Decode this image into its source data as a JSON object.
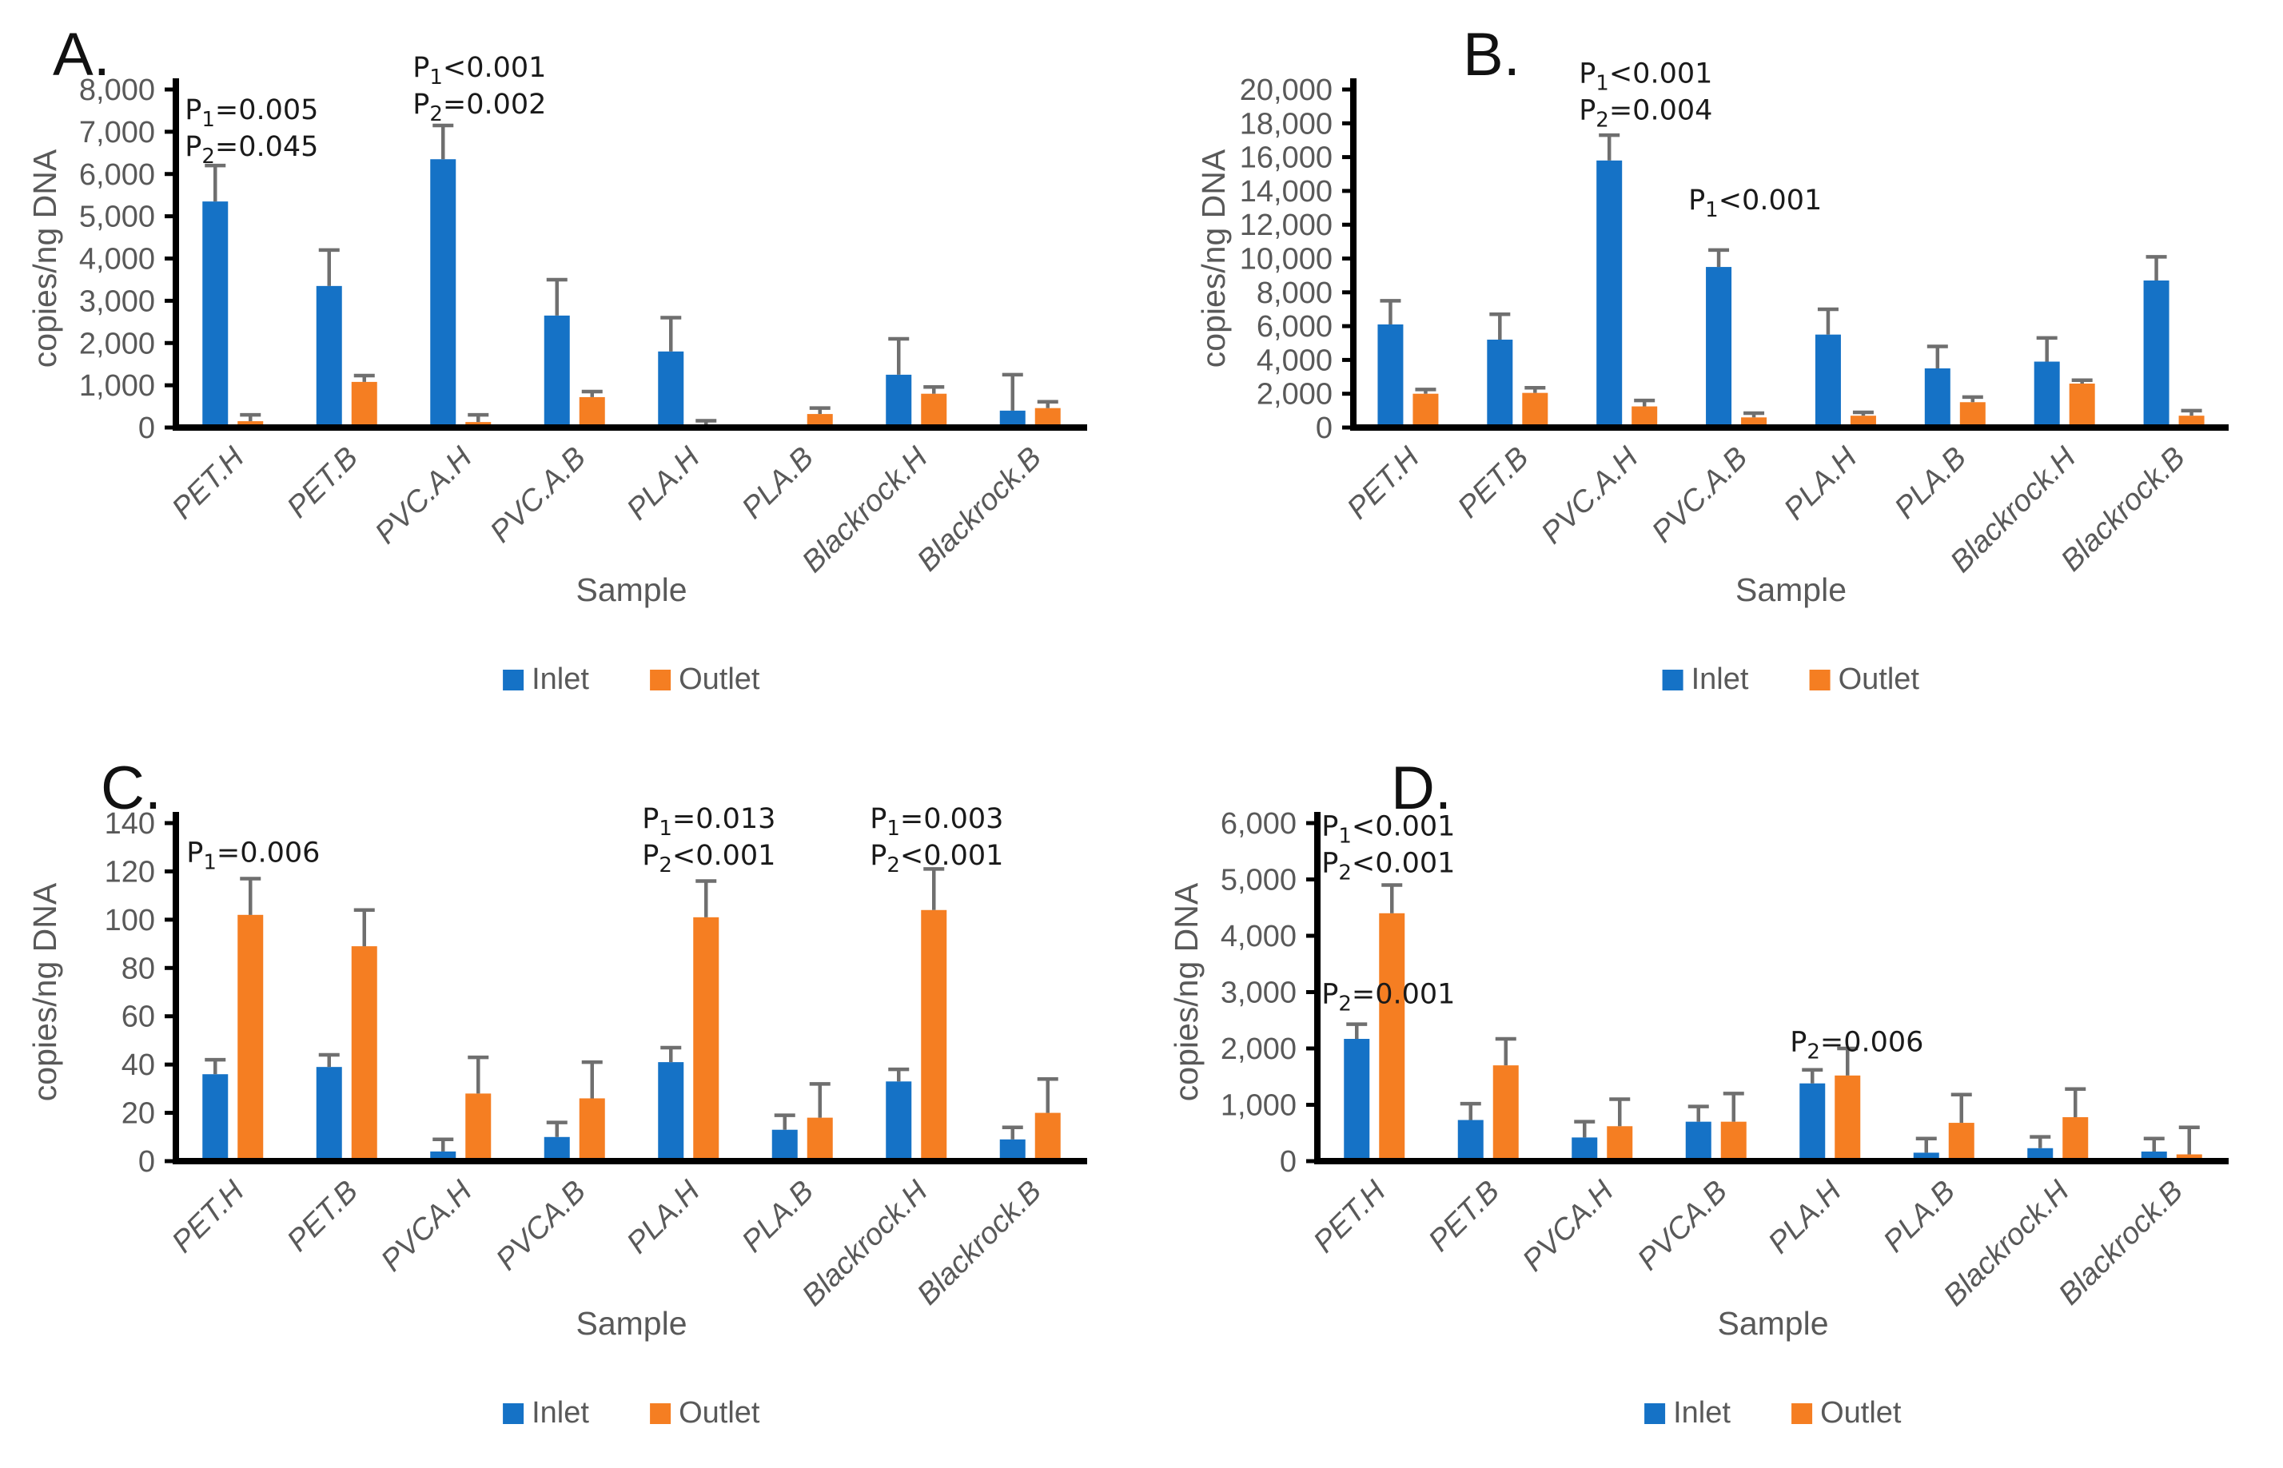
{
  "figure_background": "#ffffff",
  "colors": {
    "inlet": "#1572c6",
    "outlet": "#f57e22",
    "axis": "#000000",
    "label_gray": "#595959",
    "error_bar": "#6f6f6f",
    "annotation_text": "#1a1a1a"
  },
  "chart_data": [
    {
      "id": "A",
      "panel_label": "A.",
      "type": "bar",
      "title": "",
      "xlabel": "Sample",
      "ylabel": "copies/ng DNA",
      "ylim": [
        0,
        8000
      ],
      "ytick_step": 1000,
      "ytick_labels": [
        "0",
        "1,000",
        "2,000",
        "3,000",
        "4,000",
        "5,000",
        "6,000",
        "7,000",
        "8,000"
      ],
      "grid": "off",
      "legend_position": "bottom-center",
      "categories": [
        "PET.H",
        "PET.B",
        "PVC.A.H",
        "PVC.A.B",
        "PLA.H",
        "PLA.B",
        "Blackrock.H",
        "Blackrock.B"
      ],
      "series": [
        {
          "name": "Inlet",
          "color": "#1572c6",
          "values": [
            5350,
            3350,
            6350,
            2650,
            1800,
            0,
            1250,
            400
          ],
          "errors": [
            850,
            850,
            800,
            850,
            800,
            0,
            850,
            850
          ]
        },
        {
          "name": "Outlet",
          "color": "#f57e22",
          "values": [
            150,
            1080,
            130,
            720,
            30,
            320,
            800,
            460
          ],
          "errors": [
            150,
            150,
            170,
            130,
            130,
            140,
            160,
            150
          ]
        }
      ],
      "annotations": [
        {
          "category_index": 0,
          "y": 7300,
          "dx": -60,
          "lines": [
            {
              "base": "P",
              "sub": "1",
              "tail": "=0.005"
            },
            {
              "base": "P",
              "sub": "2",
              "tail": "=0.045"
            }
          ]
        },
        {
          "category_index": 2,
          "y": 8300,
          "dx": -60,
          "lines": [
            {
              "base": "P",
              "sub": "1",
              "tail": "<0.001"
            },
            {
              "base": "P",
              "sub": "2",
              "tail": "=0.002"
            }
          ]
        }
      ]
    },
    {
      "id": "B",
      "panel_label": "B.",
      "type": "bar",
      "title": "",
      "xlabel": "Sample",
      "ylabel": "copies/ng DNA",
      "ylim": [
        0,
        20000
      ],
      "ytick_step": 2000,
      "ytick_labels": [
        "0",
        "2,000",
        "4,000",
        "6,000",
        "8,000",
        "10,000",
        "12,000",
        "14,000",
        "16,000",
        "18,000",
        "20,000"
      ],
      "grid": "off",
      "legend_position": "bottom-center",
      "categories": [
        "PET.H",
        "PET.B",
        "PVC.A.H",
        "PVC.A.B",
        "PLA.H",
        "PLA.B",
        "Blackrock.H",
        "Blackrock.B"
      ],
      "series": [
        {
          "name": "Inlet",
          "color": "#1572c6",
          "values": [
            6100,
            5200,
            15800,
            9500,
            5500,
            3500,
            3900,
            8700
          ],
          "errors": [
            1400,
            1500,
            1500,
            1000,
            1500,
            1300,
            1400,
            1400
          ]
        },
        {
          "name": "Outlet",
          "color": "#f57e22",
          "values": [
            2000,
            2050,
            1250,
            600,
            700,
            1500,
            2600,
            700
          ],
          "errors": [
            250,
            300,
            350,
            250,
            200,
            300,
            200,
            300
          ]
        }
      ],
      "annotations": [
        {
          "category_index": 2,
          "y": 20400,
          "dx": -60,
          "lines": [
            {
              "base": "P",
              "sub": "1",
              "tail": "<0.001"
            },
            {
              "base": "P",
              "sub": "2",
              "tail": "=0.004"
            }
          ]
        },
        {
          "category_index": 3,
          "y": 12900,
          "dx": -60,
          "lines": [
            {
              "base": "P",
              "sub": "1",
              "tail": "<0.001"
            }
          ]
        }
      ]
    },
    {
      "id": "C",
      "panel_label": "C.",
      "type": "bar",
      "title": "",
      "xlabel": "Sample",
      "ylabel": "copies/ng DNA",
      "ylim": [
        0,
        140
      ],
      "ytick_step": 20,
      "ytick_labels": [
        "0",
        "20",
        "40",
        "60",
        "80",
        "100",
        "120",
        "140"
      ],
      "grid": "off",
      "legend_position": "bottom-center",
      "categories": [
        "PET.H",
        "PET.B",
        "PVCA.H",
        "PVCA.B",
        "PLA.H",
        "PLA.B",
        "Blackrock.H",
        "Blackrock.B"
      ],
      "series": [
        {
          "name": "Inlet",
          "color": "#1572c6",
          "values": [
            36,
            39,
            4,
            10,
            41,
            13,
            33,
            9
          ],
          "errors": [
            6,
            5,
            5,
            6,
            6,
            6,
            5,
            5
          ]
        },
        {
          "name": "Outlet",
          "color": "#f57e22",
          "values": [
            102,
            89,
            28,
            26,
            101,
            18,
            104,
            20
          ],
          "errors": [
            15,
            15,
            15,
            15,
            15,
            14,
            17,
            14
          ]
        }
      ],
      "annotations": [
        {
          "category_index": 0,
          "y": 124,
          "dx": -58,
          "lines": [
            {
              "base": "P",
              "sub": "1",
              "tail": "=0.006"
            }
          ]
        },
        {
          "category_index": 4,
          "y": 138,
          "dx": -58,
          "lines": [
            {
              "base": "P",
              "sub": "1",
              "tail": "=0.013"
            },
            {
              "base": "P",
              "sub": "2",
              "tail": "<0.001"
            }
          ]
        },
        {
          "category_index": 6,
          "y": 138,
          "dx": -58,
          "lines": [
            {
              "base": "P",
              "sub": "1",
              "tail": "=0.003"
            },
            {
              "base": "P",
              "sub": "2",
              "tail": "<0.001"
            }
          ]
        }
      ]
    },
    {
      "id": "D",
      "panel_label": "D.",
      "type": "bar",
      "title": "",
      "xlabel": "Sample",
      "ylabel": "copies/ng DNA",
      "ylim": [
        0,
        6000
      ],
      "ytick_step": 1000,
      "ytick_labels": [
        "0",
        "1,000",
        "2,000",
        "3,000",
        "4,000",
        "5,000",
        "6,000"
      ],
      "grid": "off",
      "legend_position": "bottom-center",
      "categories": [
        "PET.H",
        "PET.B",
        "PVCA.H",
        "PVCA.B",
        "PLA.H",
        "PLA.B",
        "Blackrock.H",
        "Blackrock.B"
      ],
      "series": [
        {
          "name": "Inlet",
          "color": "#1572c6",
          "values": [
            2170,
            730,
            420,
            700,
            1380,
            150,
            230,
            170
          ],
          "errors": [
            260,
            290,
            280,
            270,
            240,
            250,
            200,
            230
          ]
        },
        {
          "name": "Outlet",
          "color": "#f57e22",
          "values": [
            4400,
            1700,
            620,
            700,
            1520,
            680,
            780,
            120
          ],
          "errors": [
            500,
            470,
            480,
            500,
            480,
            500,
            500,
            480
          ]
        }
      ],
      "annotations": [
        {
          "category_index": 0,
          "y": 5780,
          "dx": -66,
          "lines": [
            {
              "base": "P",
              "sub": "1",
              "tail": "<0.001"
            },
            {
              "base": "P",
              "sub": "2",
              "tail": "<0.001"
            }
          ]
        },
        {
          "category_index": 0,
          "y": 2800,
          "dx": -66,
          "lines": [
            {
              "base": "P",
              "sub": "2",
              "tail": "=0.001"
            }
          ]
        },
        {
          "category_index": 4,
          "y": 1950,
          "dx": -50,
          "lines": [
            {
              "base": "P",
              "sub": "2",
              "tail": "=0.006"
            }
          ]
        }
      ]
    }
  ]
}
